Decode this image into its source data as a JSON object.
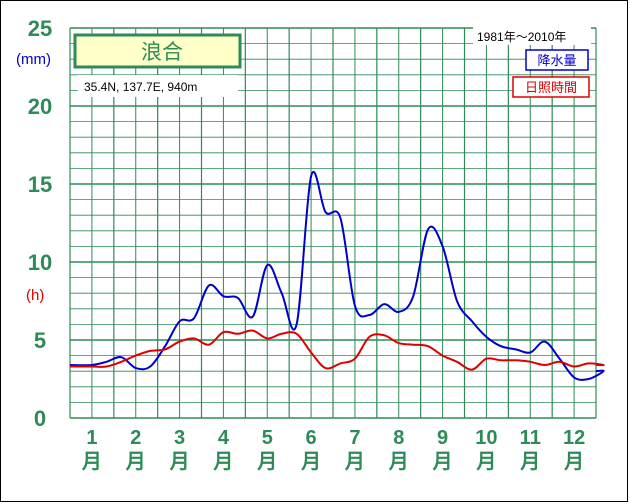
{
  "chart_data": {
    "type": "line",
    "title": "浪合",
    "location": "35.4N, 137.7E, 940m",
    "period": "1981年〜2010年",
    "y_unit_precip": "(mm)",
    "y_unit_sun": "(h)",
    "ylim": [
      0,
      25
    ],
    "y_ticks": [
      "0",
      "5",
      "10",
      "15",
      "20",
      "25"
    ],
    "months": [
      {
        "num": "1",
        "suffix": "月"
      },
      {
        "num": "2",
        "suffix": "月"
      },
      {
        "num": "3",
        "suffix": "月"
      },
      {
        "num": "4",
        "suffix": "月"
      },
      {
        "num": "5",
        "suffix": "月"
      },
      {
        "num": "6",
        "suffix": "月"
      },
      {
        "num": "7",
        "suffix": "月"
      },
      {
        "num": "8",
        "suffix": "月"
      },
      {
        "num": "9",
        "suffix": "月"
      },
      {
        "num": "10",
        "suffix": "月"
      },
      {
        "num": "11",
        "suffix": "月"
      },
      {
        "num": "12",
        "suffix": "月"
      }
    ],
    "grid": true,
    "legend_position": "top-right",
    "series": [
      {
        "name": "降水量",
        "color": "#0000cc",
        "unit": "mm",
        "x": [
          1,
          1.33,
          1.67,
          2,
          2.33,
          2.67,
          3,
          3.33,
          3.67,
          4,
          4.33,
          4.67,
          5,
          5.33,
          5.67,
          6,
          6.33,
          6.67,
          7,
          7.33,
          7.67,
          8,
          8.33,
          8.67,
          9,
          9.33,
          9.67,
          10,
          10.33,
          10.67,
          11,
          11.33,
          11.67,
          12,
          12.33,
          12.67
        ],
        "values": [
          3.4,
          3.6,
          3.9,
          3.2,
          3.3,
          4.6,
          6.2,
          6.4,
          8.5,
          7.8,
          7.7,
          6.5,
          9.8,
          8.0,
          6.0,
          15.5,
          13.2,
          12.8,
          7.2,
          6.6,
          7.3,
          6.8,
          7.8,
          12.1,
          11.0,
          7.5,
          6.2,
          5.2,
          4.6,
          4.4,
          4.2,
          4.9,
          3.8,
          2.6,
          2.5,
          3.0
        ]
      },
      {
        "name": "日照時間",
        "color": "#dd0000",
        "unit": "h",
        "x": [
          1,
          1.33,
          1.67,
          2,
          2.33,
          2.67,
          3,
          3.33,
          3.67,
          4,
          4.33,
          4.67,
          5,
          5.33,
          5.67,
          6,
          6.33,
          6.67,
          7,
          7.33,
          7.67,
          8,
          8.33,
          8.67,
          9,
          9.33,
          9.67,
          10,
          10.33,
          10.67,
          11,
          11.33,
          11.67,
          12,
          12.33,
          12.67
        ],
        "values": [
          3.3,
          3.3,
          3.6,
          4.0,
          4.3,
          4.4,
          4.9,
          5.1,
          4.7,
          5.5,
          5.4,
          5.6,
          5.1,
          5.4,
          5.4,
          4.2,
          3.2,
          3.5,
          3.8,
          5.2,
          5.3,
          4.8,
          4.7,
          4.6,
          4.0,
          3.6,
          3.1,
          3.8,
          3.7,
          3.7,
          3.6,
          3.4,
          3.6,
          3.3,
          3.5,
          3.4
        ]
      }
    ]
  }
}
